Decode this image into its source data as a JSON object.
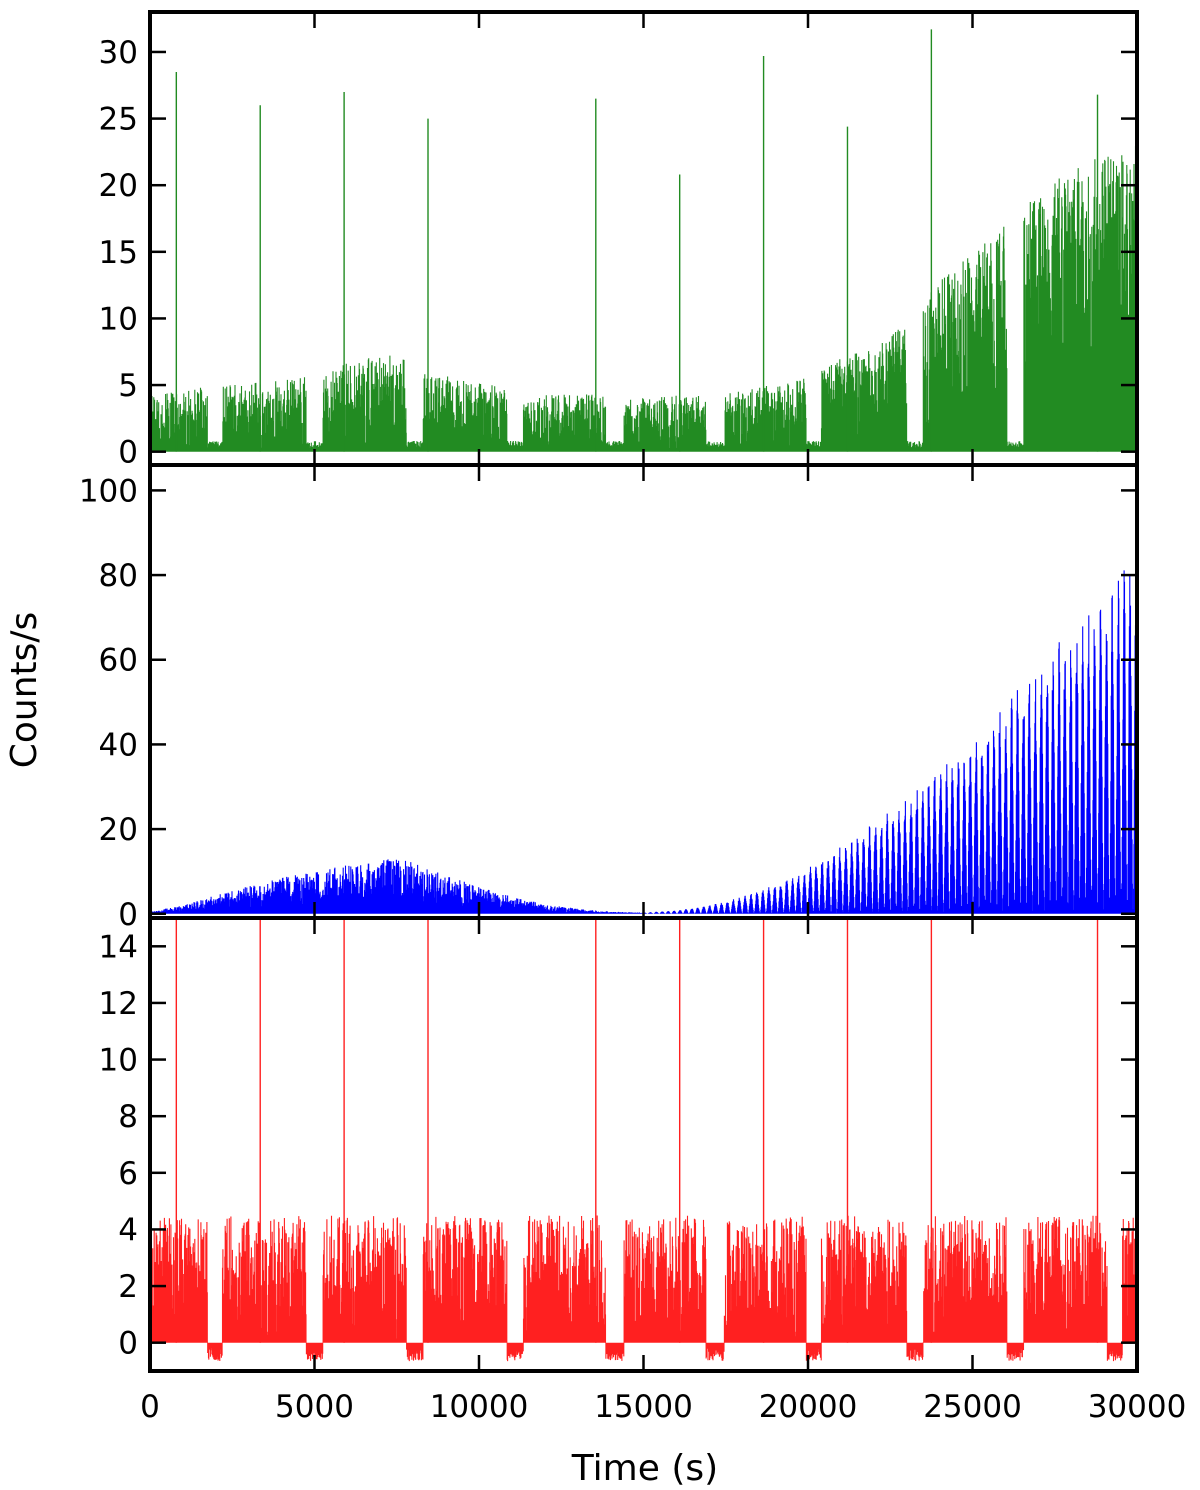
{
  "figure": {
    "xlabel": "Time (s)",
    "ylabel": "Counts/s"
  },
  "chart_data": [
    {
      "type": "line",
      "panel": "top",
      "color": "#228b22",
      "xlim": [
        0,
        30000
      ],
      "ylim": [
        -1,
        33
      ],
      "x_ticks": [
        0,
        5000,
        10000,
        15000,
        20000,
        25000,
        30000
      ],
      "y_ticks": [
        0,
        5,
        10,
        15,
        20,
        25,
        30
      ],
      "gaps": [
        [
          1750,
          2200
        ],
        [
          4750,
          5250
        ],
        [
          7800,
          8300
        ],
        [
          10850,
          11350
        ],
        [
          13850,
          14400
        ],
        [
          16900,
          17450
        ],
        [
          19950,
          20400
        ],
        [
          23000,
          23500
        ],
        [
          26050,
          26550
        ]
      ],
      "spikes": [
        {
          "x": 800,
          "y": 28.5
        },
        {
          "x": 3350,
          "y": 26
        },
        {
          "x": 5900,
          "y": 27
        },
        {
          "x": 8450,
          "y": 25
        },
        {
          "x": 13550,
          "y": 26.5
        },
        {
          "x": 16100,
          "y": 20.8
        },
        {
          "x": 18650,
          "y": 29.7
        },
        {
          "x": 21200,
          "y": 24.4
        },
        {
          "x": 23750,
          "y": 31.7
        },
        {
          "x": 28800,
          "y": 26.8
        }
      ],
      "envelope": {
        "x": [
          0,
          1500,
          2500,
          4500,
          5500,
          7500,
          8500,
          10500,
          11500,
          13500,
          14500,
          16500,
          17500,
          19500,
          20500,
          22500,
          23500,
          25500,
          27500,
          30000
        ],
        "y": [
          4.2,
          4.8,
          5.0,
          5.6,
          6.4,
          7.5,
          6.2,
          5.0,
          4.2,
          4.4,
          4.0,
          4.3,
          4.4,
          5.3,
          6.5,
          8.5,
          12,
          16,
          20.5,
          23.5
        ]
      }
    },
    {
      "type": "line",
      "panel": "middle",
      "color": "#0000ff",
      "xlim": [
        0,
        30000
      ],
      "ylim": [
        -1,
        106
      ],
      "x_ticks": [
        0,
        5000,
        10000,
        15000,
        20000,
        25000,
        30000
      ],
      "y_ticks": [
        0,
        20,
        40,
        60,
        80,
        100
      ],
      "envelope": {
        "x": [
          0,
          1000,
          2000,
          3000,
          4000,
          5000,
          6000,
          7000,
          7500,
          8000,
          9000,
          10000,
          11000,
          12000,
          13000,
          14000,
          15000,
          16000,
          17000,
          18000,
          19000,
          20000,
          21000,
          22000,
          23000,
          24000,
          25000,
          26000,
          27000,
          28000,
          29000,
          30000
        ],
        "y": [
          0.5,
          2,
          4.5,
          6.5,
          8.5,
          10,
          11.5,
          12.5,
          13.5,
          12,
          9,
          6.5,
          4,
          2.3,
          1.2,
          0.5,
          0.3,
          0.8,
          2,
          4,
          7,
          11,
          16,
          22,
          28,
          35,
          42,
          50,
          59,
          68,
          77,
          86
        ]
      }
    },
    {
      "type": "line",
      "panel": "bottom",
      "color": "#ff2020",
      "xlim": [
        0,
        30000
      ],
      "ylim": [
        -1,
        15
      ],
      "x_ticks": [
        0,
        5000,
        10000,
        15000,
        20000,
        25000,
        30000
      ],
      "x_tick_labels": [
        "0",
        "5000",
        "10000",
        "15000",
        "20000",
        "25000",
        "30000"
      ],
      "y_ticks": [
        0,
        2,
        4,
        6,
        8,
        10,
        12,
        14
      ],
      "gaps": [
        [
          1750,
          2200
        ],
        [
          4750,
          5250
        ],
        [
          7800,
          8300
        ],
        [
          10850,
          11350
        ],
        [
          13850,
          14400
        ],
        [
          16900,
          17450
        ],
        [
          19950,
          20400
        ],
        [
          23000,
          23500
        ],
        [
          26050,
          26550
        ],
        [
          29100,
          29550
        ]
      ],
      "spikes": [
        {
          "x": 800,
          "y": 15
        },
        {
          "x": 3350,
          "y": 15
        },
        {
          "x": 5900,
          "y": 15
        },
        {
          "x": 8450,
          "y": 15
        },
        {
          "x": 13550,
          "y": 15
        },
        {
          "x": 16100,
          "y": 15
        },
        {
          "x": 18650,
          "y": 15
        },
        {
          "x": 21200,
          "y": 15
        },
        {
          "x": 23750,
          "y": 15
        },
        {
          "x": 28800,
          "y": 15
        }
      ],
      "envelope": {
        "x": [
          0,
          30000
        ],
        "y": [
          4.5,
          4.5
        ]
      }
    }
  ]
}
